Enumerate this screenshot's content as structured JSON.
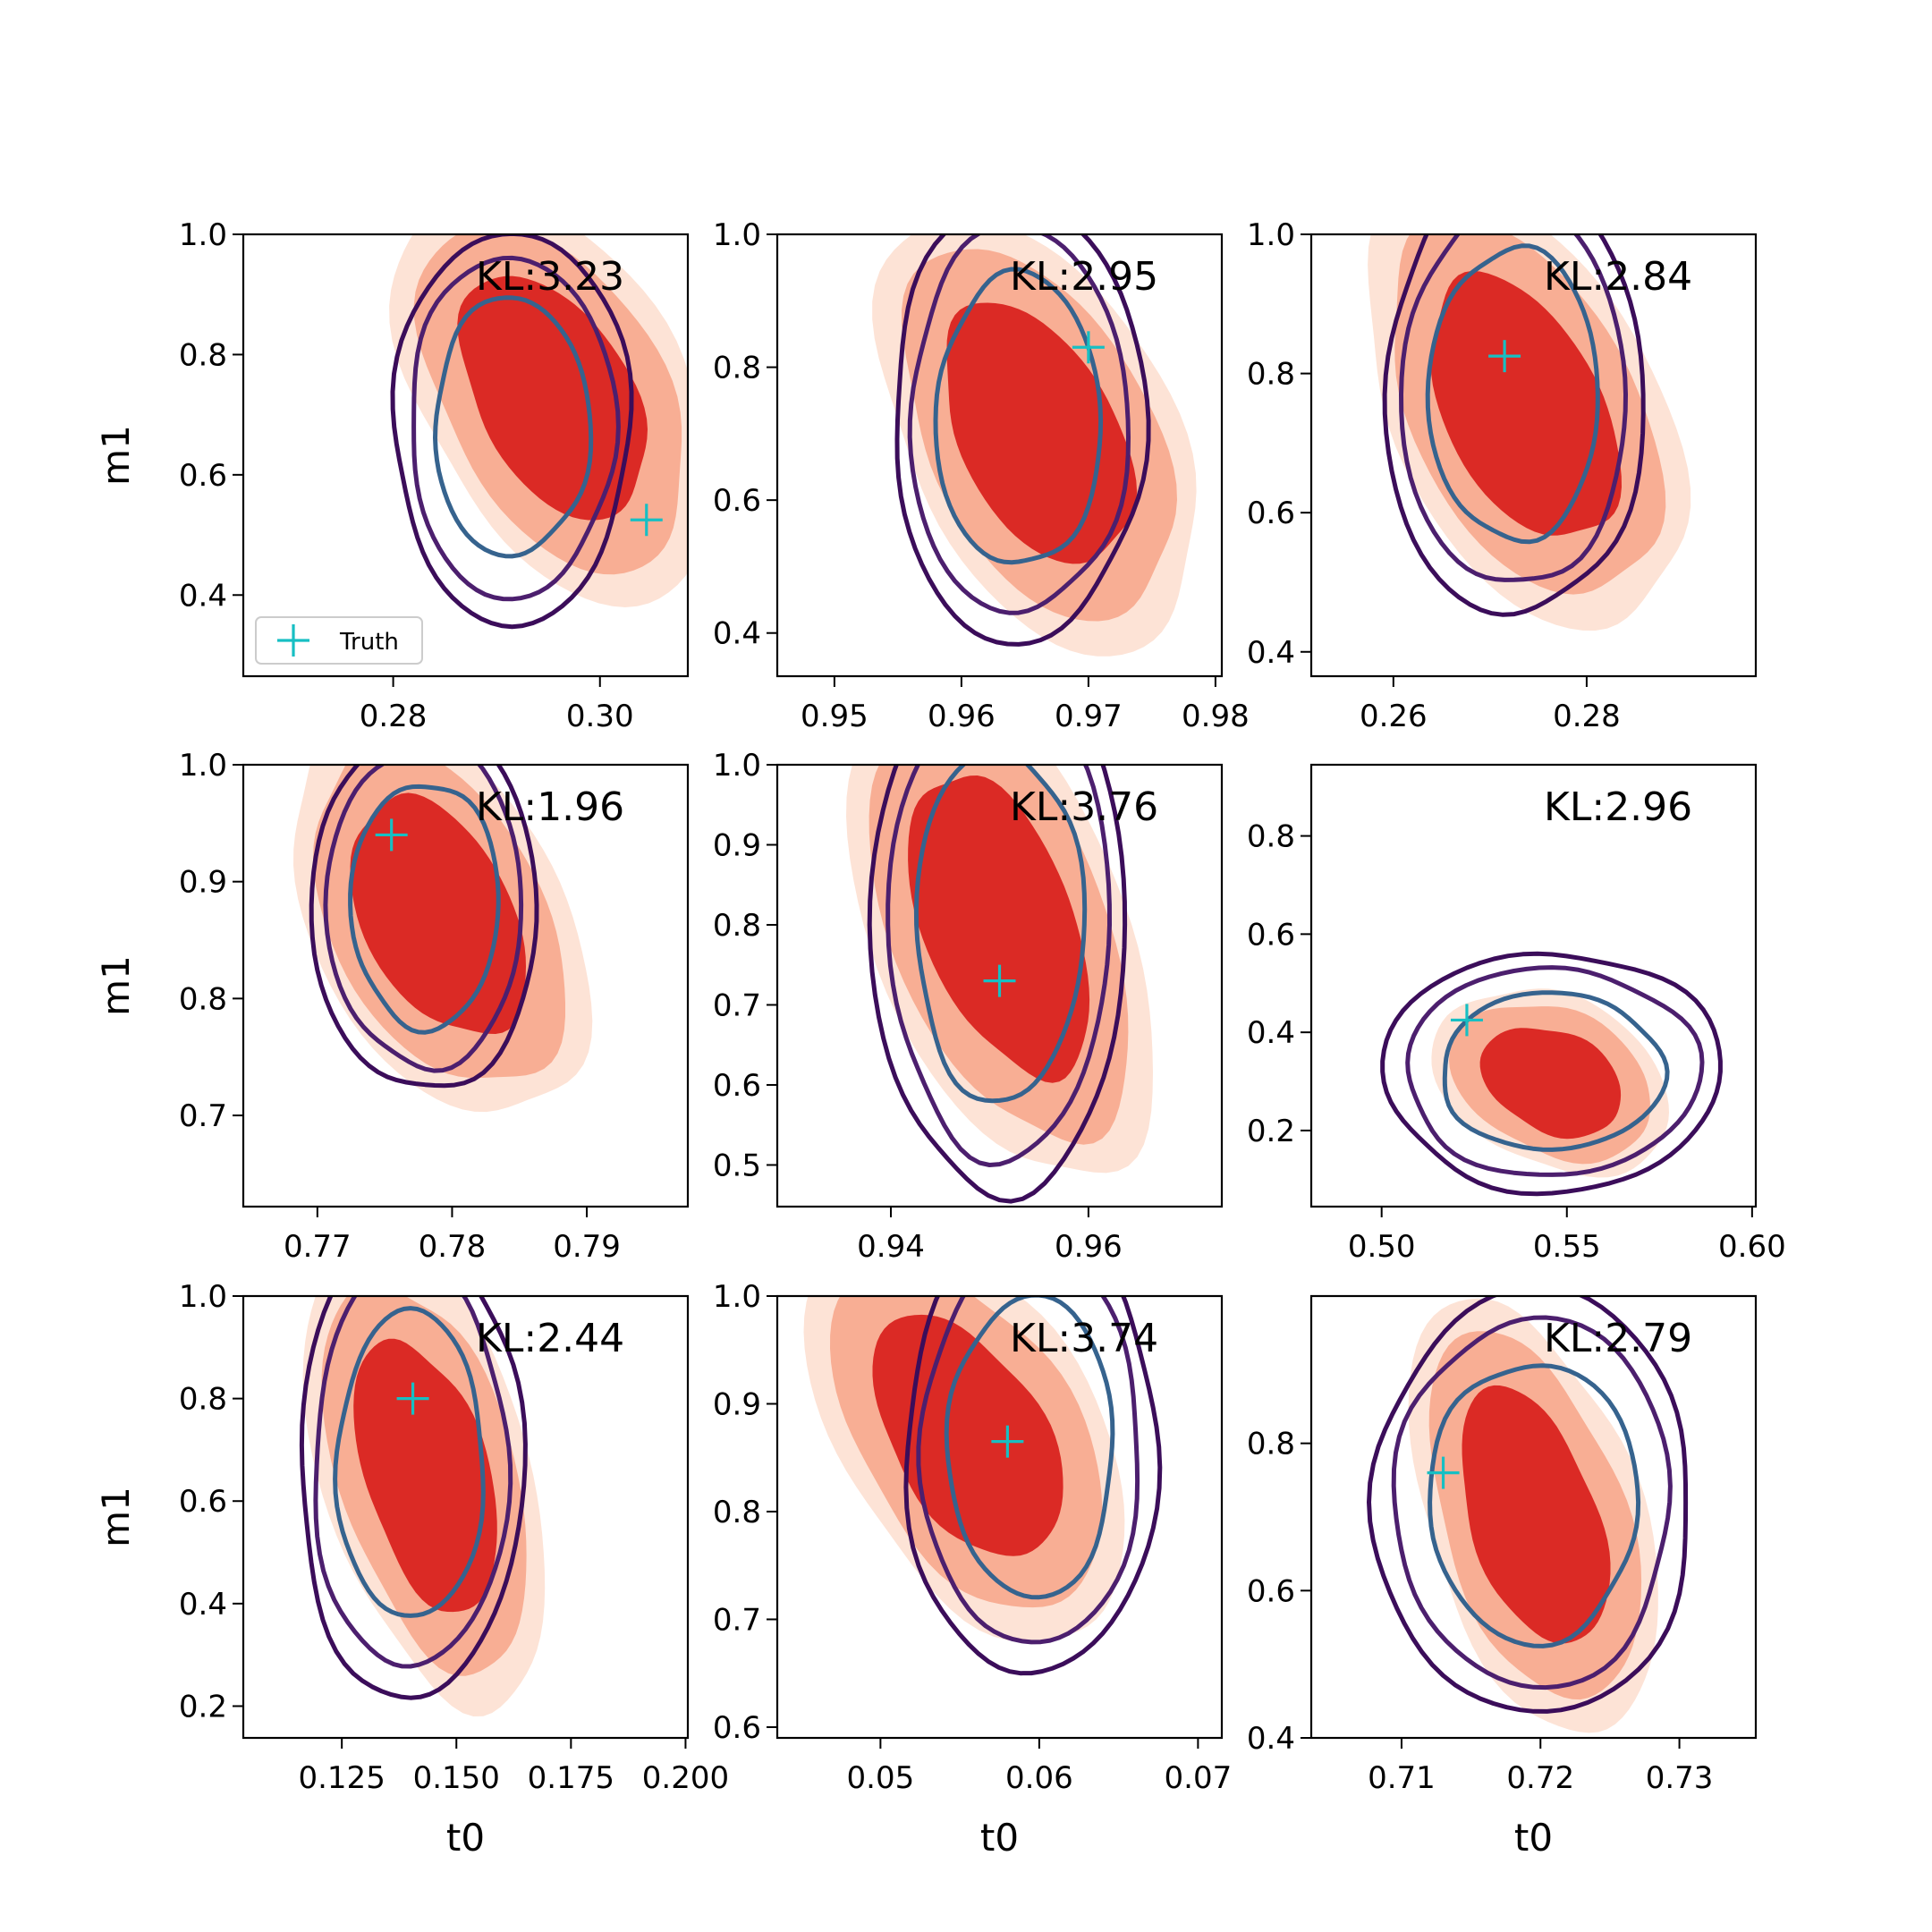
{
  "figure": {
    "x_label": "t0",
    "y_label": "m1",
    "legend_label": "Truth",
    "legend_location": "lower-left of first panel",
    "colors": {
      "filled_outer": "#fde3d6",
      "filled_mid": "#f8ae94",
      "filled_inner": "#db2a25",
      "contour_inner": "#36638e",
      "contour_mid": "#4c1f6e",
      "contour_outer": "#3b0d5a",
      "truth_marker": "#17bfc3"
    }
  },
  "chart_data": [
    {
      "type": "contour",
      "kl": "KL:3.23",
      "xlim": [
        0.2655,
        0.3085
      ],
      "ylim": [
        0.265,
        1.0
      ],
      "xticks": [
        0.28,
        0.3
      ],
      "xtick_labels": [
        "0.28",
        "0.30"
      ],
      "yticks": [
        0.4,
        0.6,
        0.8,
        1.0
      ],
      "ytick_labels": [
        "0.4",
        "0.6",
        "0.8",
        "1.0"
      ],
      "truth": [
        0.3045,
        0.525
      ],
      "filled_center": [
        0.2955,
        0.73
      ],
      "filled_spread": [
        0.0115,
        0.29
      ],
      "filled_tilt": -0.5,
      "contour_center": [
        0.2915,
        0.68
      ],
      "contour_spread": [
        0.0075,
        0.215
      ],
      "contour_tilt": 0.0,
      "xlabel": "",
      "ylabel": "m1",
      "legend": true
    },
    {
      "type": "contour",
      "kl": "KL:2.95",
      "xlim": [
        0.9455,
        0.9805
      ],
      "ylim": [
        0.335,
        1.0
      ],
      "xticks": [
        0.95,
        0.96,
        0.97,
        0.98
      ],
      "xtick_labels": [
        "0.95",
        "0.96",
        "0.97",
        "0.98"
      ],
      "yticks": [
        0.4,
        0.6,
        0.8,
        1.0
      ],
      "ytick_labels": [
        "0.4",
        "0.6",
        "0.8",
        "1.0"
      ],
      "truth": [
        0.97,
        0.83
      ],
      "filled_center": [
        0.966,
        0.7
      ],
      "filled_spread": [
        0.0095,
        0.28
      ],
      "filled_tilt": -0.5,
      "contour_center": [
        0.9645,
        0.72
      ],
      "contour_spread": [
        0.0065,
        0.22
      ],
      "contour_tilt": 0.0,
      "xlabel": "",
      "ylabel": "",
      "legend": false
    },
    {
      "type": "contour",
      "kl": "KL:2.84",
      "xlim": [
        0.2515,
        0.2975
      ],
      "ylim": [
        0.365,
        1.0
      ],
      "xticks": [
        0.26,
        0.28
      ],
      "xtick_labels": [
        "0.26",
        "0.28"
      ],
      "yticks": [
        0.4,
        0.6,
        0.8,
        1.0
      ],
      "ytick_labels": [
        "0.4",
        "0.6",
        "0.8",
        "1.0"
      ],
      "truth": [
        0.2715,
        0.825
      ],
      "filled_center": [
        0.2735,
        0.75
      ],
      "filled_spread": [
        0.0125,
        0.27
      ],
      "filled_tilt": -0.5,
      "contour_center": [
        0.2725,
        0.77
      ],
      "contour_spread": [
        0.0088,
        0.21
      ],
      "contour_tilt": 0.0,
      "xlabel": "",
      "ylabel": "",
      "legend": false
    },
    {
      "type": "contour",
      "kl": "KL:1.96",
      "xlim": [
        0.7645,
        0.7975
      ],
      "ylim": [
        0.622,
        1.0
      ],
      "xticks": [
        0.77,
        0.78,
        0.79
      ],
      "xtick_labels": [
        "0.77",
        "0.78",
        "0.79"
      ],
      "yticks": [
        0.7,
        0.8,
        0.9,
        1.0
      ],
      "ytick_labels": [
        "0.7",
        "0.8",
        "0.9",
        "1.0"
      ],
      "truth": [
        0.7755,
        0.94
      ],
      "filled_center": [
        0.779,
        0.87
      ],
      "filled_spread": [
        0.0085,
        0.145
      ],
      "filled_tilt": -0.45,
      "contour_center": [
        0.778,
        0.88
      ],
      "contour_spread": [
        0.0055,
        0.105
      ],
      "contour_tilt": 0.0,
      "xlabel": "",
      "ylabel": "m1",
      "legend": false
    },
    {
      "type": "contour",
      "kl": "KL:3.76",
      "xlim": [
        0.9285,
        0.9735
      ],
      "ylim": [
        0.448,
        1.0
      ],
      "xticks": [
        0.94,
        0.96
      ],
      "xtick_labels": [
        "0.94",
        "0.96"
      ],
      "yticks": [
        0.5,
        0.6,
        0.7,
        0.8,
        0.9,
        1.0
      ],
      "ytick_labels": [
        "0.5",
        "0.6",
        "0.7",
        "0.8",
        "0.9",
        "1.0"
      ],
      "truth": [
        0.951,
        0.73
      ],
      "filled_center": [
        0.951,
        0.8
      ],
      "filled_spread": [
        0.0115,
        0.27
      ],
      "filled_tilt": -0.55,
      "contour_center": [
        0.951,
        0.8
      ],
      "contour_spread": [
        0.0085,
        0.22
      ],
      "contour_tilt": 0.0,
      "xlabel": "",
      "ylabel": "",
      "legend": false
    },
    {
      "type": "contour",
      "kl": "KL:2.96",
      "xlim": [
        0.481,
        0.601
      ],
      "ylim": [
        0.045,
        0.945
      ],
      "xticks": [
        0.5,
        0.55,
        0.6
      ],
      "xtick_labels": [
        "0.50",
        "0.55",
        "0.60"
      ],
      "yticks": [
        0.2,
        0.4,
        0.6,
        0.8
      ],
      "ytick_labels": [
        "0.2",
        "0.4",
        "0.6",
        "0.8"
      ],
      "truth": [
        0.523,
        0.425
      ],
      "filled_center": [
        0.546,
        0.3
      ],
      "filled_spread": [
        0.026,
        0.16
      ],
      "filled_tilt": -0.3,
      "contour_center": [
        0.546,
        0.32
      ],
      "contour_spread": [
        0.03,
        0.16
      ],
      "contour_tilt": 0.0,
      "xlabel": "",
      "ylabel": "",
      "legend": false
    },
    {
      "type": "contour",
      "kl": "KL:2.44",
      "xlim": [
        0.1035,
        0.2005
      ],
      "ylim": [
        0.138,
        1.0
      ],
      "xticks": [
        0.125,
        0.15,
        0.175,
        0.2
      ],
      "xtick_labels": [
        "0.125",
        "0.150",
        "0.175",
        "0.200"
      ],
      "yticks": [
        0.2,
        0.4,
        0.6,
        0.8,
        1.0
      ],
      "ytick_labels": [
        "0.2",
        "0.4",
        "0.6",
        "0.8",
        "1.0"
      ],
      "truth": [
        0.1405,
        0.8
      ],
      "filled_center": [
        0.1435,
        0.65
      ],
      "filled_spread": [
        0.02,
        0.38
      ],
      "filled_tilt": -0.5,
      "contour_center": [
        0.14,
        0.67
      ],
      "contour_spread": [
        0.016,
        0.3
      ],
      "contour_tilt": 0.0,
      "xlabel": "t0",
      "ylabel": "m1",
      "legend": false
    },
    {
      "type": "contour",
      "kl": "KL:3.74",
      "xlim": [
        0.0435,
        0.0715
      ],
      "ylim": [
        0.59,
        1.0
      ],
      "xticks": [
        0.05,
        0.06,
        0.07
      ],
      "xtick_labels": [
        "0.05",
        "0.06",
        "0.07"
      ],
      "yticks": [
        0.6,
        0.7,
        0.8,
        0.9,
        1.0
      ],
      "ytick_labels": [
        "0.6",
        "0.7",
        "0.8",
        "0.9",
        "1.0"
      ],
      "truth": [
        0.058,
        0.865
      ],
      "filled_center": [
        0.0555,
        0.87
      ],
      "filled_spread": [
        0.0075,
        0.16
      ],
      "filled_tilt": -0.55,
      "contour_center": [
        0.0595,
        0.86
      ],
      "contour_spread": [
        0.0052,
        0.14
      ],
      "contour_tilt": 0.0,
      "xlabel": "t0",
      "ylabel": "",
      "legend": false
    },
    {
      "type": "contour",
      "kl": "KL:2.79",
      "xlim": [
        0.7035,
        0.7355
      ],
      "ylim": [
        0.4,
        1.0
      ],
      "xticks": [
        0.71,
        0.72,
        0.73
      ],
      "xtick_labels": [
        "0.71",
        "0.72",
        "0.73"
      ],
      "yticks": [
        0.4,
        0.6,
        0.8
      ],
      "ytick_labels": [
        "0.4",
        "0.6",
        "0.8"
      ],
      "truth": [
        0.713,
        0.76
      ],
      "filled_center": [
        0.7195,
        0.7
      ],
      "filled_spread": [
        0.0068,
        0.25
      ],
      "filled_tilt": -0.5,
      "contour_center": [
        0.7195,
        0.72
      ],
      "contour_spread": [
        0.0075,
        0.19
      ],
      "contour_tilt": 0.0,
      "xlabel": "t0",
      "ylabel": "",
      "legend": false
    }
  ]
}
